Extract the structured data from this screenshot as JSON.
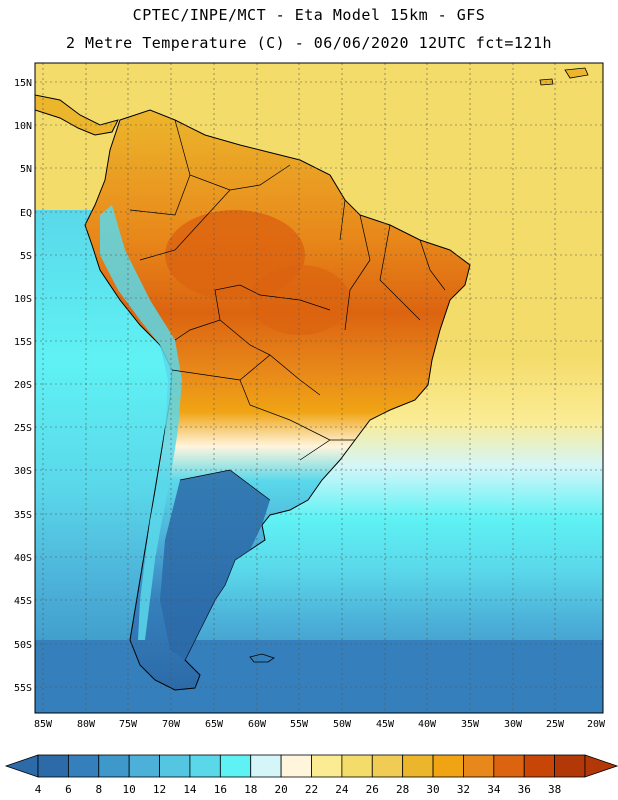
{
  "title": {
    "line1": "CPTEC/INPE/MCT -  Eta Model 15km - GFS",
    "line2": "2 Metre Temperature (C) - 06/06/2020 12UTC fct=121h"
  },
  "map": {
    "region": "South America",
    "lat_labels": [
      "15N",
      "10N",
      "5N",
      "EQ",
      "5S",
      "10S",
      "15S",
      "20S",
      "25S",
      "30S",
      "35S",
      "40S",
      "45S",
      "50S",
      "55S"
    ],
    "lon_labels": [
      "85W",
      "80W",
      "75W",
      "70W",
      "65W",
      "60W",
      "55W",
      "50W",
      "45W",
      "40W",
      "35W",
      "30W",
      "25W",
      "20W"
    ]
  },
  "colorbar": {
    "labels": [
      "4",
      "6",
      "8",
      "10",
      "12",
      "14",
      "16",
      "18",
      "20",
      "22",
      "24",
      "26",
      "28",
      "30",
      "32",
      "34",
      "36",
      "38"
    ],
    "colors": [
      "#2c6aa8",
      "#3580bc",
      "#3e98c9",
      "#4cb0d8",
      "#55c6e2",
      "#5ad8ea",
      "#5ff2f4",
      "#d4f6f9",
      "#fff5dc",
      "#fbec94",
      "#f4dc6a",
      "#f0cc55",
      "#ecb62c",
      "#f0a414",
      "#e8881a",
      "#dc6410",
      "#c84508",
      "#b33808"
    ]
  },
  "fields": {
    "ocean_north": "#f4dc6a",
    "land_hot": "#dc6410",
    "land_warm": "#ecb62c",
    "ocean_mid": "#5ad8ea",
    "ocean_south": "#3580bc",
    "land_cold": "#2c6aa8",
    "coast": "#000000"
  }
}
